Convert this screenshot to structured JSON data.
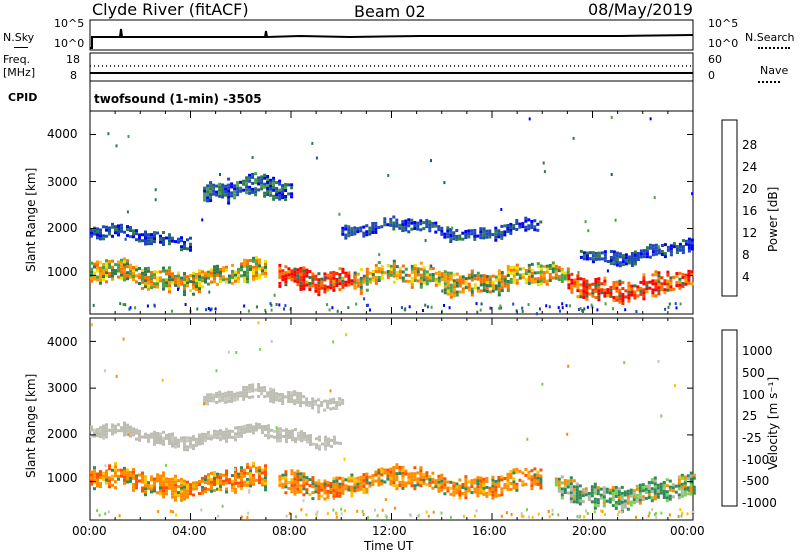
{
  "header": {
    "station": "Clyde River (fitACF)",
    "beam": "Beam 02",
    "date": "08/May/2019"
  },
  "top_panels": {
    "nsky_label": "N.Sky",
    "nsky_ticks": [
      "10^5",
      "10^0"
    ],
    "nsearch_label": "N.Search",
    "freq_label_line1": "Freq.",
    "freq_label_line2": "[MHz]",
    "freq_ticks": [
      "18",
      "8"
    ],
    "nave_label": "Nave",
    "nave_ticks": [
      "60",
      "0"
    ],
    "cpid_label": "CPID",
    "cpid_text": "twofsound (1-min) -3505"
  },
  "colors": {
    "power_scale": [
      "#0000ff",
      "#1e4bb4",
      "#2f7a4a",
      "#4aa04a",
      "#9acd32",
      "#f0e000",
      "#f5a000",
      "#ff7000",
      "#ff3000",
      "#ff0000"
    ],
    "velocity_scale": [
      "#ff0000",
      "#ff5000",
      "#ff8c00",
      "#ffc000",
      "#c8c8c0",
      "#b4b4a8",
      "#7ad050",
      "#2e8b57",
      "#1e5aa0",
      "#2030c0"
    ],
    "ground_scatter": "#bdbdb4"
  },
  "chart_data": [
    {
      "type": "heatmap",
      "name": "power",
      "ylabel": "Slant Range [km]",
      "xlabel": "",
      "ylim": [
        180,
        4500
      ],
      "yticks": [
        "1000",
        "2000",
        "3000",
        "4000"
      ],
      "xticks": [],
      "colorbar_label": "Power [dB]",
      "colorbar_ticks": [
        "4",
        "8",
        "12",
        "16",
        "20",
        "24",
        "28"
      ],
      "features": [
        {
          "t_start": 0.0,
          "t_end": 7.0,
          "range_km": 1000,
          "level": "high"
        },
        {
          "t_start": 7.5,
          "t_end": 10.5,
          "range_km": 1000,
          "level": "very high"
        },
        {
          "t_start": 10.5,
          "t_end": 19.0,
          "range_km": 950,
          "level": "high"
        },
        {
          "t_start": 19.0,
          "t_end": 24.0,
          "range_km": 800,
          "level": "very high"
        },
        {
          "t_start": 0.0,
          "t_end": 4.0,
          "range_km": 1850,
          "level": "low"
        },
        {
          "t_start": 4.5,
          "t_end": 8.0,
          "range_km": 2800,
          "level": "medium"
        },
        {
          "t_start": 10.0,
          "t_end": 18.0,
          "range_km": 2000,
          "level": "low"
        },
        {
          "t_start": 19.5,
          "t_end": 24.0,
          "range_km": 1500,
          "level": "low"
        }
      ]
    },
    {
      "type": "heatmap",
      "name": "velocity",
      "ylabel": "Slant Range [km]",
      "xlabel": "Time UT",
      "ylim": [
        180,
        4500
      ],
      "yticks": [
        "1000",
        "2000",
        "3000",
        "4000"
      ],
      "xticks": [
        "00:00",
        "04:00",
        "08:00",
        "12:00",
        "16:00",
        "20:00",
        "00:00"
      ],
      "colorbar_label": "Velocity [m s⁻¹]",
      "colorbar_ticks": [
        "1000",
        "500",
        "100",
        "25",
        "-25",
        "-100",
        "-500",
        "-1000"
      ],
      "features": [
        {
          "t_start": 0.0,
          "t_end": 7.0,
          "range_km": 1000,
          "velocity": "-100 to -500"
        },
        {
          "t_start": 7.5,
          "t_end": 18.0,
          "range_km": 1000,
          "velocity": "-100 to -500"
        },
        {
          "t_start": 18.5,
          "t_end": 24.0,
          "range_km": 800,
          "velocity": "25 to 100"
        },
        {
          "t_start": 0.0,
          "t_end": 10.0,
          "range_km": 2000,
          "velocity": "ground scatter"
        },
        {
          "t_start": 4.5,
          "t_end": 10.0,
          "range_km": 2800,
          "velocity": "ground scatter"
        }
      ]
    }
  ]
}
